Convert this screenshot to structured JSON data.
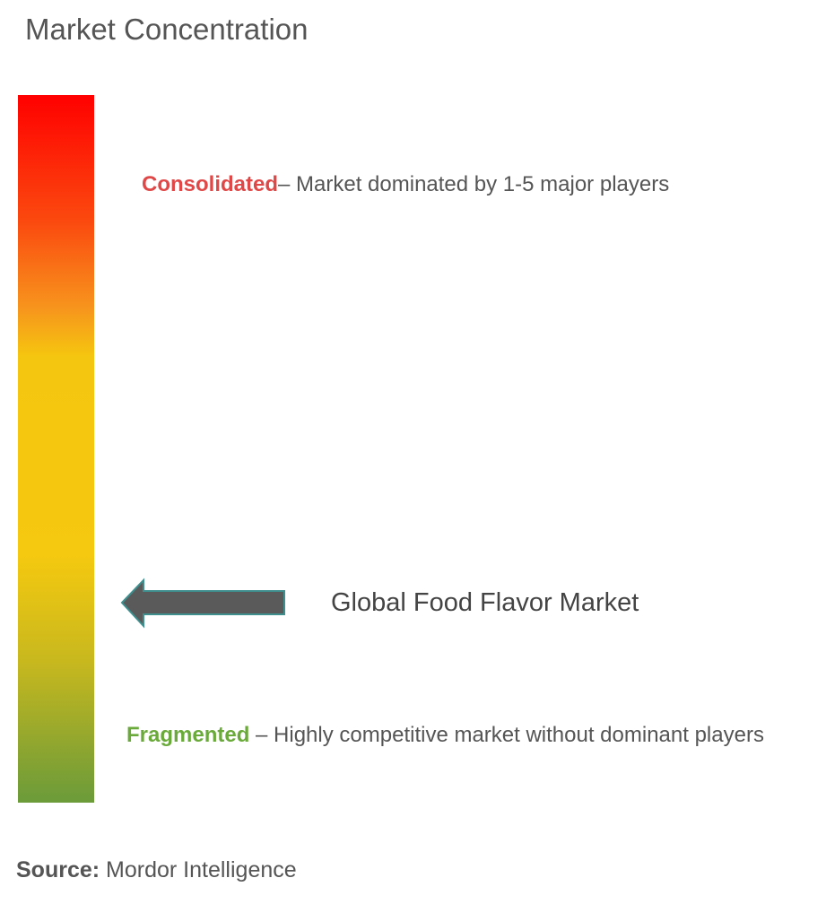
{
  "title": "Market Concentration",
  "scale": {
    "top_color": "#ff0000",
    "middle_color": "#f5c90f",
    "bottom_color": "#6b9b3a"
  },
  "consolidated": {
    "label": "Consolidated",
    "description": "– Market dominated by 1-5 major players",
    "color": "#e04848"
  },
  "fragmented": {
    "label": "Fragmented",
    "description": " – Highly competitive market without dominant players",
    "color": "#6aaa3a"
  },
  "marker": {
    "label": "Global Food Flavor Market",
    "icon": "arrow-left-icon",
    "level": "fragmented-moderate"
  },
  "source": {
    "label": "Source:",
    "value": " Mordor Intelligence"
  }
}
